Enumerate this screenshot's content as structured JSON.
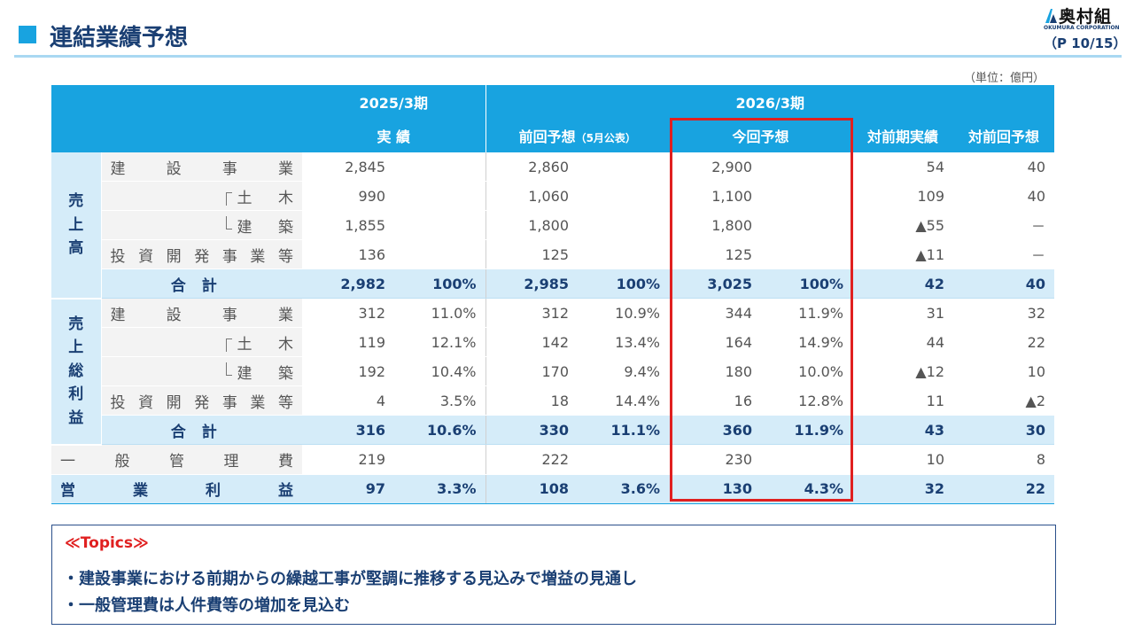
{
  "header": {
    "title": "連結業績予想",
    "logo_text": "奥村組",
    "logo_sub": "OKUMURA CORPORATION",
    "page": "（P 10/15）",
    "unit": "（単位：億円）"
  },
  "table": {
    "period_fy2025": "2025/3期",
    "period_fy2026": "2026/3期",
    "col_actual": "実 績",
    "col_prev": "前回予想",
    "col_prev_note": "（5月公表）",
    "col_current": "今回予想",
    "col_vs_prior_year": "対前期実績",
    "col_vs_prev_forecast": "対前回予想",
    "groups": {
      "sales": [
        "売",
        "上",
        "高"
      ],
      "gross_profit": [
        "売",
        "上",
        "総",
        "利",
        "益"
      ]
    },
    "labels": {
      "construction": [
        "建",
        "設",
        "事",
        "業"
      ],
      "civil": [
        "土",
        "木"
      ],
      "building": [
        "建",
        "築"
      ],
      "investment": [
        "投",
        "資",
        "開",
        "発",
        "事",
        "業",
        "等"
      ],
      "total": "合計",
      "sga": [
        "一",
        "般",
        "管",
        "理",
        "費"
      ],
      "operating_profit": [
        "営",
        "業",
        "利",
        "益"
      ]
    },
    "sales_rows": [
      {
        "a": "2,845",
        "ar": "",
        "p": "2,860",
        "pr": "",
        "c": "2,900",
        "cr": "",
        "y": "54",
        "f": "40"
      },
      {
        "a": "990",
        "ar": "",
        "p": "1,060",
        "pr": "",
        "c": "1,100",
        "cr": "",
        "y": "109",
        "f": "40"
      },
      {
        "a": "1,855",
        "ar": "",
        "p": "1,800",
        "pr": "",
        "c": "1,800",
        "cr": "",
        "y": "▲55",
        "f": "－"
      },
      {
        "a": "136",
        "ar": "",
        "p": "125",
        "pr": "",
        "c": "125",
        "cr": "",
        "y": "▲11",
        "f": "－"
      }
    ],
    "sales_total": {
      "a": "2,982",
      "ar": "100%",
      "p": "2,985",
      "pr": "100%",
      "c": "3,025",
      "cr": "100%",
      "y": "42",
      "f": "40"
    },
    "gp_rows": [
      {
        "a": "312",
        "ar": "11.0%",
        "p": "312",
        "pr": "10.9%",
        "c": "344",
        "cr": "11.9%",
        "y": "31",
        "f": "32"
      },
      {
        "a": "119",
        "ar": "12.1%",
        "p": "142",
        "pr": "13.4%",
        "c": "164",
        "cr": "14.9%",
        "y": "44",
        "f": "22"
      },
      {
        "a": "192",
        "ar": "10.4%",
        "p": "170",
        "pr": "9.4%",
        "c": "180",
        "cr": "10.0%",
        "y": "▲12",
        "f": "10"
      },
      {
        "a": "4",
        "ar": "3.5%",
        "p": "18",
        "pr": "14.4%",
        "c": "16",
        "cr": "12.8%",
        "y": "11",
        "f": "▲2"
      }
    ],
    "gp_total": {
      "a": "316",
      "ar": "10.6%",
      "p": "330",
      "pr": "11.1%",
      "c": "360",
      "cr": "11.9%",
      "y": "43",
      "f": "30"
    },
    "sga": {
      "a": "219",
      "ar": "",
      "p": "222",
      "pr": "",
      "c": "230",
      "cr": "",
      "y": "10",
      "f": "8"
    },
    "operating_profit": {
      "a": "97",
      "ar": "3.3%",
      "p": "108",
      "pr": "3.6%",
      "c": "130",
      "cr": "4.3%",
      "y": "32",
      "f": "22"
    }
  },
  "topics": {
    "title": "≪Topics≫",
    "items": [
      "・建設事業における前期からの繰越工事が堅調に推移する見込みで増益の見通し",
      "・一般管理費は人件費等の増加を見込む"
    ]
  },
  "colors": {
    "header_blue": "#18a3e0",
    "light_blue": "#d5ecf9",
    "navy": "#1a3f73",
    "highlight_red": "#e02020"
  }
}
